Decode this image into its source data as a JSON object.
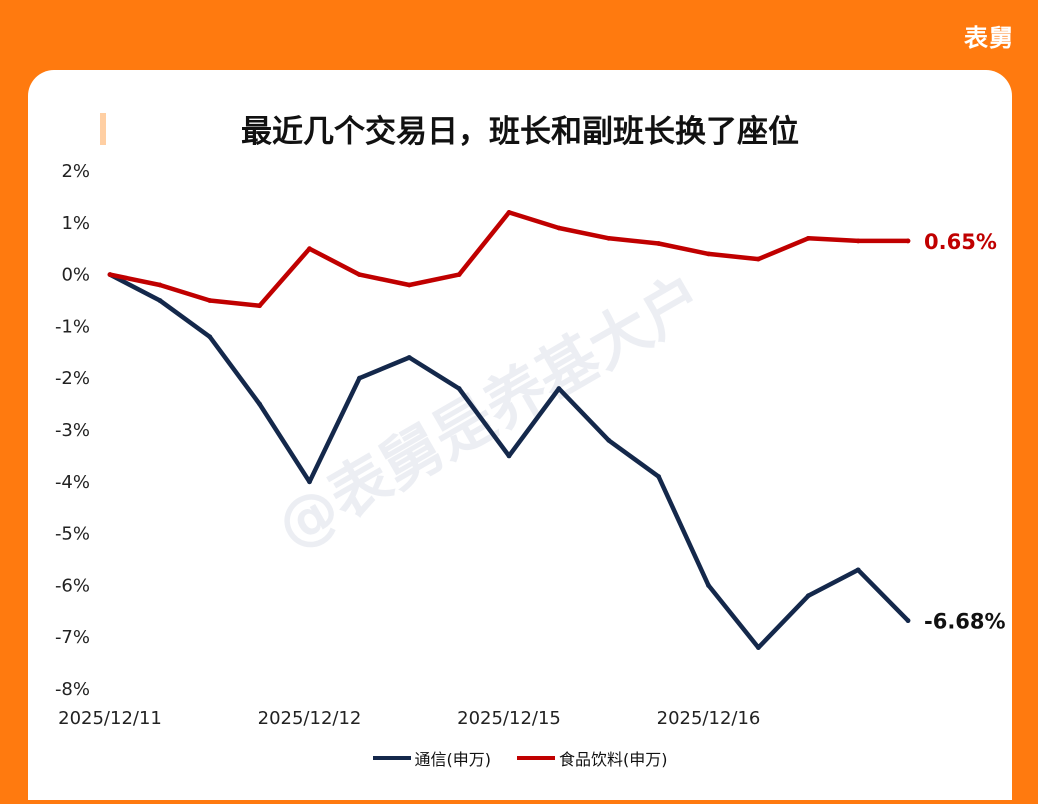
{
  "brand": "表舅",
  "watermark": "@表舅是养基大户",
  "chart_data": {
    "type": "line",
    "title": "最近几个交易日，班长和副班长换了座位",
    "ylim": [
      -8,
      2
    ],
    "yticks": [
      2,
      1,
      0,
      -1,
      -2,
      -3,
      -4,
      -5,
      -6,
      -7,
      -8
    ],
    "ytick_suffix": "%",
    "xtick_labels": [
      "2025/12/11",
      "2025/12/12",
      "2025/12/15",
      "2025/12/16"
    ],
    "x": [
      0,
      0.25,
      0.5,
      0.75,
      1,
      1.25,
      1.5,
      1.75,
      2,
      2.25,
      2.5,
      2.75,
      3,
      3.25,
      3.5,
      3.75,
      4
    ],
    "grid": false,
    "legend_position": "bottom",
    "series": [
      {
        "name": "通信(申万)",
        "color": "#14284b",
        "values": [
          0.0,
          -0.5,
          -1.2,
          -2.5,
          -4.0,
          -2.0,
          -1.6,
          -2.2,
          -3.5,
          -2.2,
          -3.2,
          -3.9,
          -6.0,
          -7.2,
          -6.2,
          -5.7,
          -6.68
        ],
        "end_label": "-6.68%"
      },
      {
        "name": "食品饮料(申万)",
        "color": "#c00000",
        "values": [
          0.0,
          -0.2,
          -0.5,
          -0.6,
          0.5,
          0.0,
          -0.2,
          0.0,
          1.2,
          0.9,
          0.7,
          0.6,
          0.4,
          0.3,
          0.7,
          0.65,
          0.65
        ],
        "end_label": "0.65%"
      }
    ]
  }
}
